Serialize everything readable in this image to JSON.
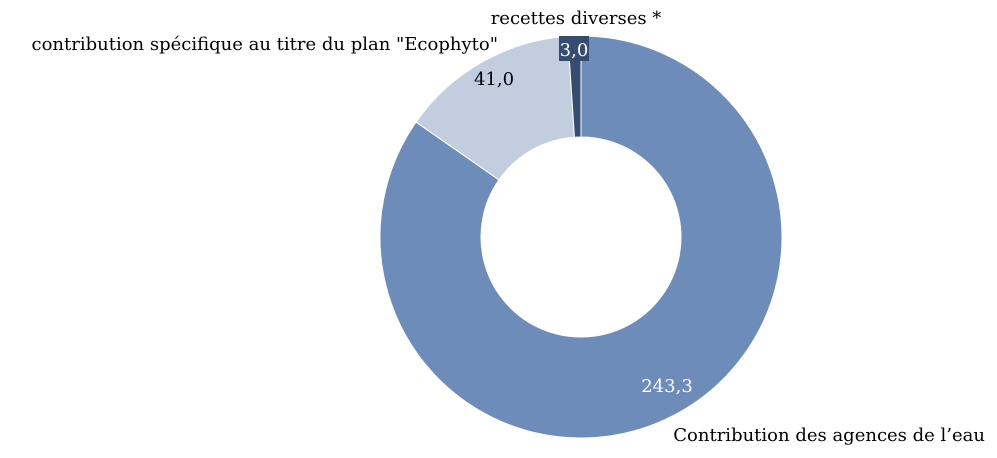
{
  "chart_data": {
    "type": "pie",
    "donut": true,
    "title": "",
    "slices": [
      {
        "label": "Contribution des agences de l’eau",
        "value": 243.3,
        "value_label": "243,3",
        "color": "#6d8cba",
        "label_color": "#ffffff"
      },
      {
        "label": "contribution spécifique au titre du plan \"Ecophyto\"",
        "value": 41.0,
        "value_label": "41,0",
        "color": "#c3cde0",
        "label_color": "#000000"
      },
      {
        "label": "recettes diverses *",
        "value": 3.0,
        "value_label": "3,0",
        "color": "#364d72",
        "label_color": "#ffffff"
      }
    ],
    "start": "top",
    "direction": "clockwise",
    "legend": "none"
  }
}
